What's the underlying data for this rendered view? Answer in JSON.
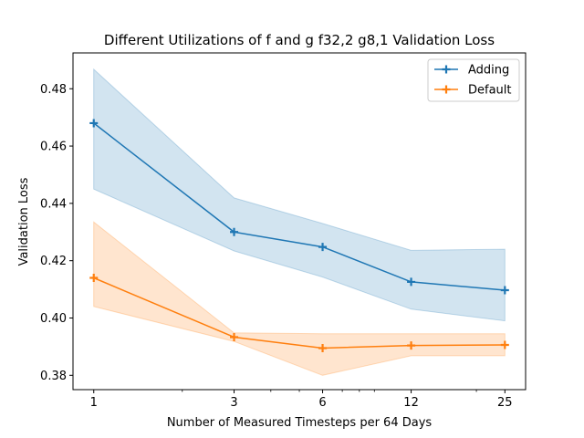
{
  "chart_data": {
    "type": "line",
    "title": "Different Utilizations of f and g f32,2 g8,1 Validation Loss",
    "xlabel": "Number of Measured Timesteps per 64 Days",
    "ylabel": "Validation Loss",
    "x_scale": "log",
    "x": [
      1,
      3,
      6,
      12,
      25
    ],
    "x_tick_labels": [
      "1",
      "3",
      "6",
      "12",
      "25"
    ],
    "ylim": [
      0.375,
      0.4925
    ],
    "y_ticks": [
      0.38,
      0.4,
      0.42,
      0.44,
      0.46,
      0.48
    ],
    "y_tick_labels": [
      "0.38",
      "0.40",
      "0.42",
      "0.44",
      "0.46",
      "0.48"
    ],
    "grid": false,
    "legend_position": "top-right",
    "marker": "plus",
    "series": [
      {
        "name": "Adding",
        "color": "#1f77b4",
        "values": [
          0.468,
          0.43,
          0.4248,
          0.4126,
          0.4097
        ],
        "band_upper": [
          0.4868,
          0.4419,
          0.433,
          0.4236,
          0.424
        ],
        "band_lower": [
          0.445,
          0.4234,
          0.4143,
          0.4031,
          0.399
        ]
      },
      {
        "name": "Default",
        "color": "#ff7f0e",
        "values": [
          0.414,
          0.3933,
          0.3895,
          0.3904,
          0.3906
        ],
        "band_upper": [
          0.4335,
          0.3948,
          0.3945,
          0.3945,
          0.3945
        ],
        "band_lower": [
          0.404,
          0.3918,
          0.38,
          0.3868,
          0.3868
        ]
      }
    ]
  }
}
